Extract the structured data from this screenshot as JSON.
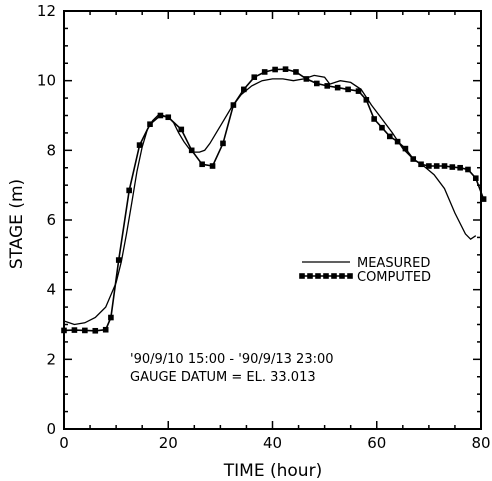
{
  "chart_data": {
    "type": "line",
    "xlabel": "TIME  (hour)",
    "ylabel": "STAGE  (m)",
    "xlim": [
      0,
      80
    ],
    "ylim": [
      0,
      12
    ],
    "xticks": [
      0,
      20,
      40,
      60,
      80
    ],
    "yticks": [
      0,
      2,
      4,
      6,
      8,
      10,
      12
    ],
    "grid": false,
    "legend_position": "right",
    "annotation_lines": [
      "'90/9/10 15:00  -  '90/9/13 23:00",
      "GAUGE  DATUM  =  EL. 33.013"
    ],
    "series": [
      {
        "name": "MEASURED",
        "style": "line",
        "color": "#000000",
        "points": [
          [
            0,
            3.1
          ],
          [
            2,
            3.0
          ],
          [
            4,
            3.05
          ],
          [
            6,
            3.2
          ],
          [
            8,
            3.5
          ],
          [
            10,
            4.2
          ],
          [
            11,
            4.8
          ],
          [
            12,
            5.6
          ],
          [
            13,
            6.5
          ],
          [
            14,
            7.4
          ],
          [
            15,
            8.1
          ],
          [
            16,
            8.6
          ],
          [
            17,
            8.85
          ],
          [
            18,
            9.0
          ],
          [
            19,
            9.0
          ],
          [
            20,
            8.95
          ],
          [
            21,
            8.8
          ],
          [
            22,
            8.5
          ],
          [
            23,
            8.25
          ],
          [
            24,
            8.05
          ],
          [
            25,
            7.95
          ],
          [
            26,
            7.95
          ],
          [
            27,
            8.0
          ],
          [
            28,
            8.2
          ],
          [
            30,
            8.7
          ],
          [
            32,
            9.2
          ],
          [
            34,
            9.6
          ],
          [
            36,
            9.85
          ],
          [
            38,
            10.0
          ],
          [
            40,
            10.05
          ],
          [
            42,
            10.05
          ],
          [
            44,
            10.0
          ],
          [
            46,
            10.05
          ],
          [
            48,
            10.15
          ],
          [
            50,
            10.1
          ],
          [
            51,
            9.9
          ],
          [
            52,
            9.95
          ],
          [
            53,
            10.0
          ],
          [
            55,
            9.95
          ],
          [
            57,
            9.75
          ],
          [
            59,
            9.3
          ],
          [
            61,
            8.9
          ],
          [
            63,
            8.5
          ],
          [
            65,
            8.05
          ],
          [
            67,
            7.75
          ],
          [
            69,
            7.55
          ],
          [
            71,
            7.3
          ],
          [
            73,
            6.9
          ],
          [
            75,
            6.2
          ],
          [
            77,
            5.6
          ],
          [
            78,
            5.45
          ],
          [
            79,
            5.55
          ]
        ]
      },
      {
        "name": "COMPUTED",
        "style": "line-markers",
        "color": "#000000",
        "points": [
          [
            0,
            2.83
          ],
          [
            2,
            2.84
          ],
          [
            4,
            2.83
          ],
          [
            6,
            2.82
          ],
          [
            8,
            2.85
          ],
          [
            9,
            3.2
          ],
          [
            10.5,
            4.85
          ],
          [
            12.5,
            6.85
          ],
          [
            14.5,
            8.15
          ],
          [
            16.5,
            8.75
          ],
          [
            18.5,
            9.0
          ],
          [
            20,
            8.95
          ],
          [
            22.5,
            8.6
          ],
          [
            24.5,
            8.0
          ],
          [
            26.5,
            7.6
          ],
          [
            28.5,
            7.55
          ],
          [
            30.5,
            8.2
          ],
          [
            32.5,
            9.3
          ],
          [
            34.5,
            9.75
          ],
          [
            36.5,
            10.1
          ],
          [
            38.5,
            10.25
          ],
          [
            40.5,
            10.32
          ],
          [
            42.5,
            10.33
          ],
          [
            44.5,
            10.25
          ],
          [
            46.5,
            10.05
          ],
          [
            48.5,
            9.92
          ],
          [
            50.5,
            9.85
          ],
          [
            52.5,
            9.8
          ],
          [
            54.5,
            9.75
          ],
          [
            56.5,
            9.7
          ],
          [
            58,
            9.45
          ],
          [
            59.5,
            8.9
          ],
          [
            61,
            8.65
          ],
          [
            62.5,
            8.4
          ],
          [
            64,
            8.25
          ],
          [
            65.5,
            8.05
          ],
          [
            67,
            7.75
          ],
          [
            68.5,
            7.6
          ],
          [
            70,
            7.55
          ],
          [
            71.5,
            7.55
          ],
          [
            73,
            7.55
          ],
          [
            74.5,
            7.52
          ],
          [
            76,
            7.5
          ],
          [
            77.5,
            7.45
          ],
          [
            79,
            7.2
          ],
          [
            80.5,
            6.6
          ]
        ]
      }
    ]
  }
}
